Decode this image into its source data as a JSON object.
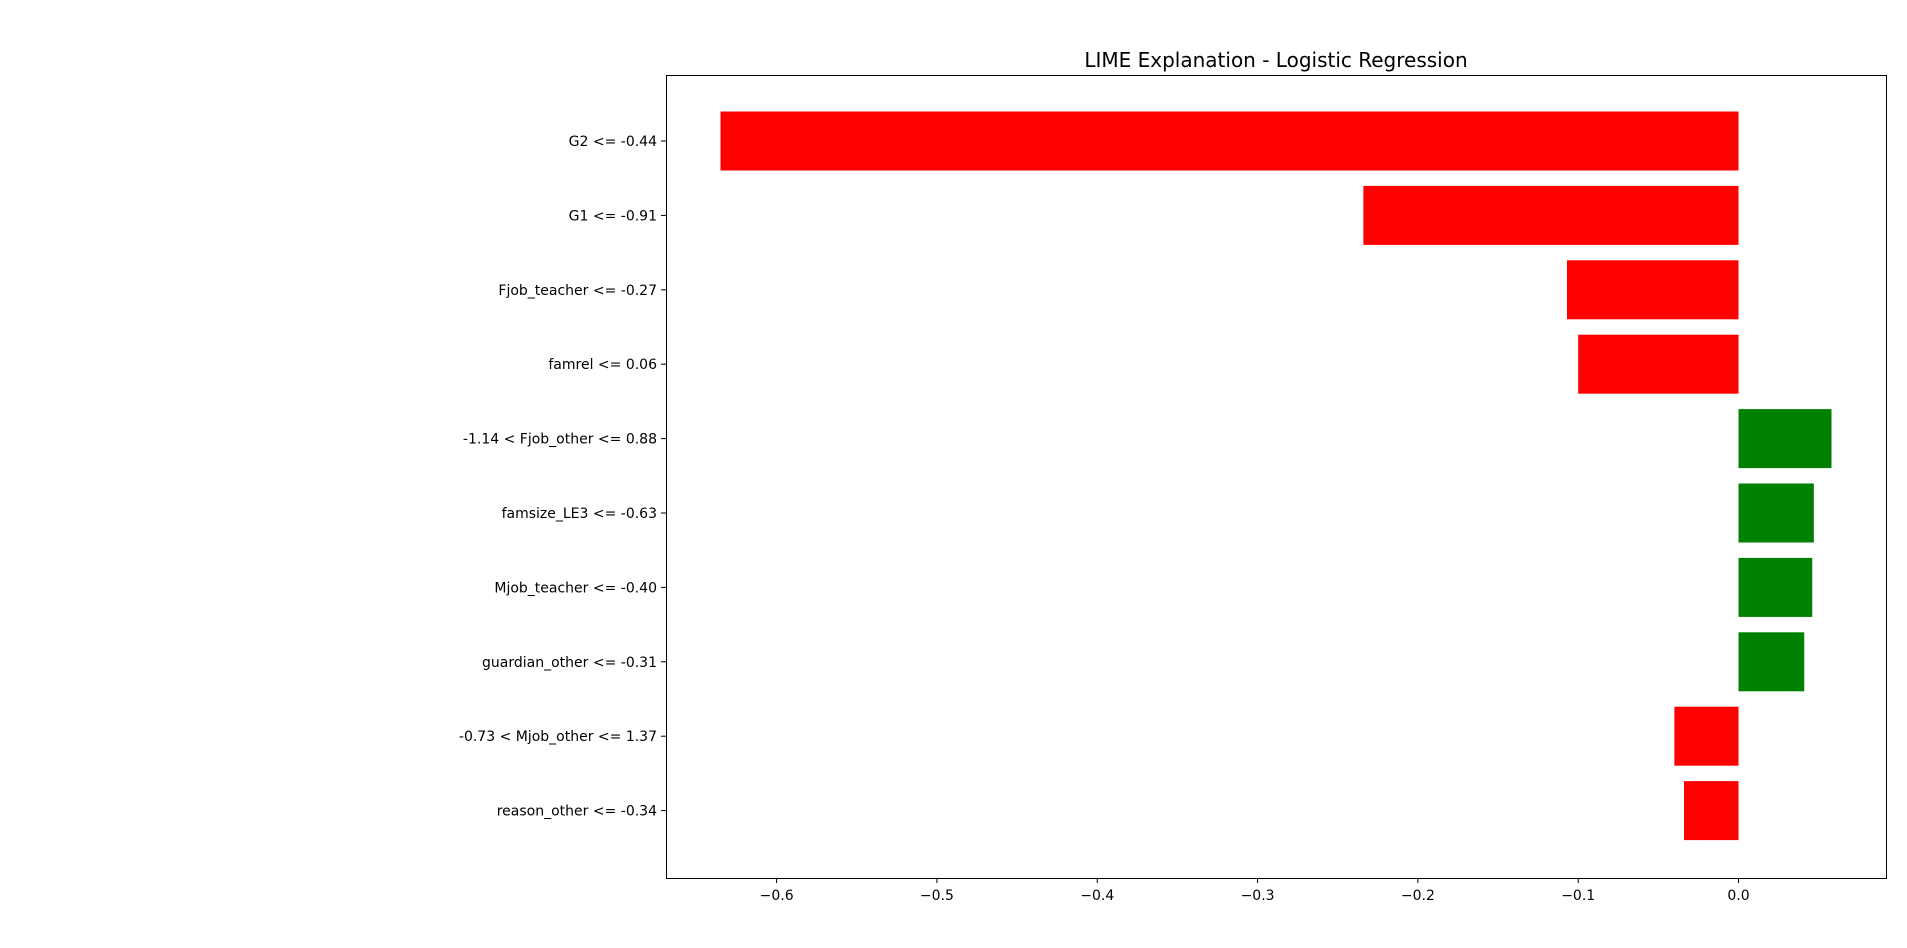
{
  "chart_data": {
    "type": "bar",
    "orientation": "horizontal",
    "title": "LIME Explanation - Logistic Regression",
    "xlabel": "",
    "ylabel": "",
    "categories": [
      "G2 <= -0.44",
      "G1 <= -0.91",
      "Fjob_teacher <= -0.27",
      "famrel <= 0.06",
      "-1.14 < Fjob_other <= 0.88",
      "famsize_LE3 <= -0.63",
      "Mjob_teacher <= -0.40",
      "guardian_other <= -0.31",
      "-0.73 < Mjob_other <= 1.37",
      "reason_other <= -0.34"
    ],
    "values": [
      -0.635,
      -0.234,
      -0.107,
      -0.1,
      0.058,
      0.047,
      0.046,
      0.041,
      -0.04,
      -0.034
    ],
    "xlim": [
      -0.669,
      0.092
    ],
    "xticks": [
      -0.6,
      -0.5,
      -0.4,
      -0.3,
      -0.2,
      -0.1,
      0.0
    ],
    "xtick_labels": [
      "−0.6",
      "−0.5",
      "−0.4",
      "−0.3",
      "−0.2",
      "−0.1",
      "0.0"
    ],
    "colors": {
      "positive": "#008000",
      "negative": "#ff0000"
    },
    "grid": false,
    "legend": "none"
  }
}
